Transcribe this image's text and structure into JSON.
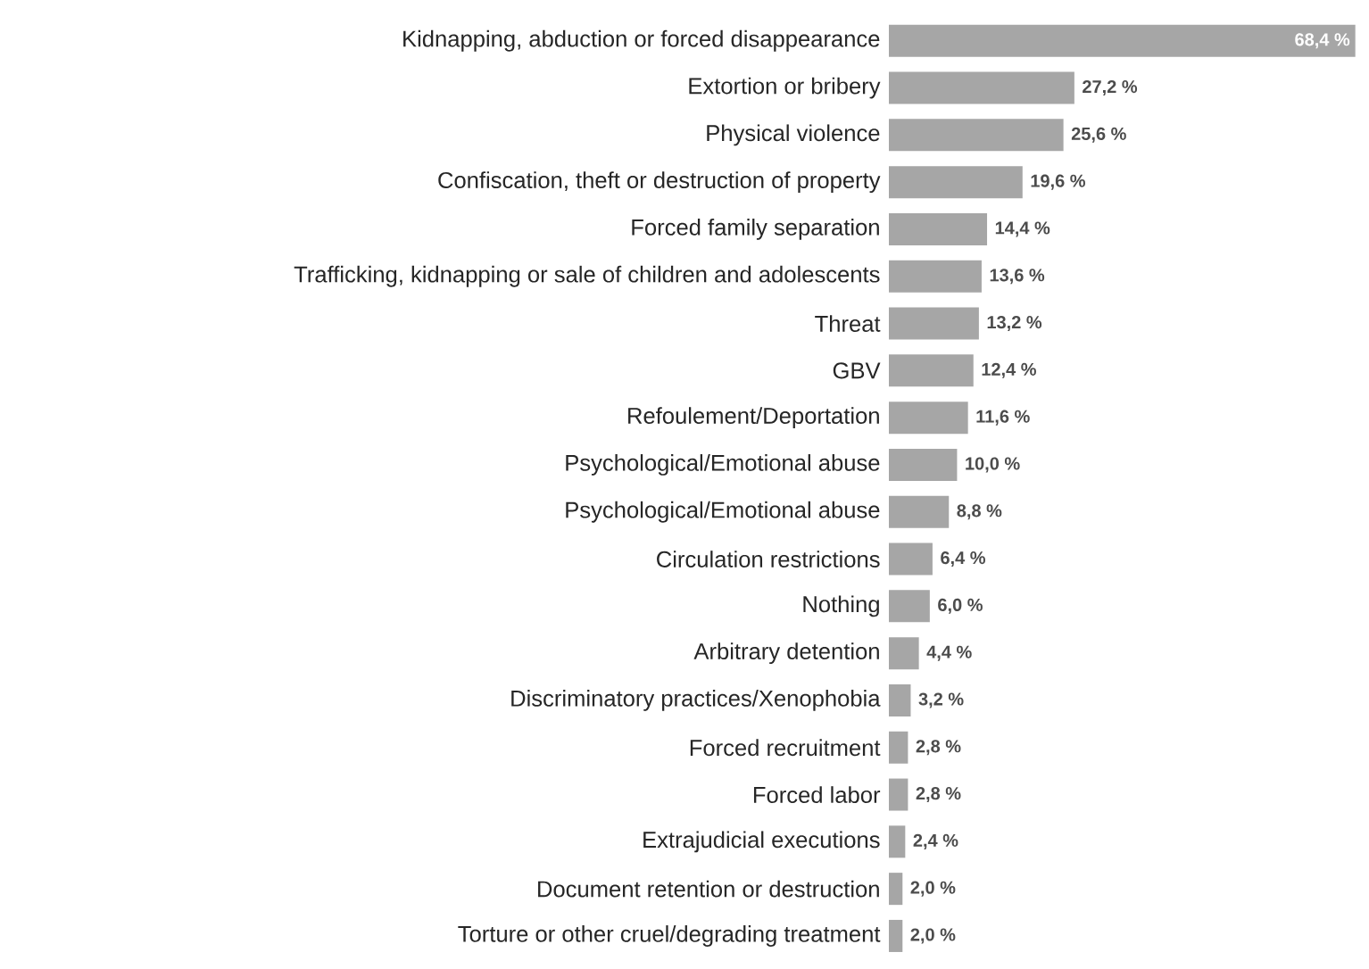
{
  "chart_data": {
    "type": "bar",
    "orientation": "horizontal",
    "color": "#a6a6a6",
    "categories": [
      "Kidnapping, abduction or forced disappearance",
      "Extortion or bribery",
      "Physical violence",
      "Confiscation, theft or destruction of property",
      "Forced family separation",
      "Trafficking, kidnapping or sale of children and adolescents",
      "Threat",
      "GBV",
      "Refoulement/Deportation",
      "Psychological/Emotional abuse",
      "Psychological/Emotional abuse",
      "Circulation restrictions",
      "Nothing",
      "Arbitrary detention",
      "Discriminatory practices/Xenophobia",
      "Forced recruitment",
      "Forced labor",
      "Extrajudicial executions",
      "Document retention or destruction",
      "Torture or other cruel/degrading treatment"
    ],
    "values": [
      68.4,
      27.2,
      25.6,
      19.6,
      14.4,
      13.6,
      13.2,
      12.4,
      11.6,
      10.0,
      8.8,
      6.4,
      6.0,
      4.4,
      3.2,
      2.8,
      2.8,
      2.4,
      2.0,
      2.0
    ],
    "value_labels": [
      "68,4 %",
      "27,2 %",
      "25,6 %",
      "19,6 %",
      "14,4 %",
      "13,6 %",
      "13,2 %",
      "12,4 %",
      "11,6 %",
      "10,0 %",
      "8,8 %",
      "6,4 %",
      "6,0 %",
      "4,4 %",
      "3,2 %",
      "2,8 %",
      "2,8 %",
      "2,4 %",
      "2,0 %",
      "2,0 %"
    ]
  }
}
